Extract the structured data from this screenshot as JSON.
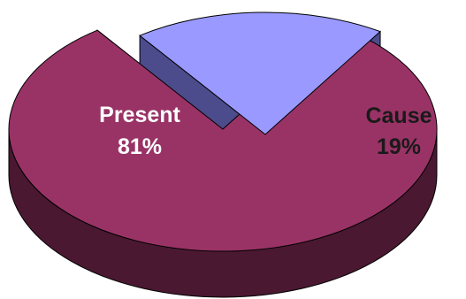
{
  "chart_data": {
    "type": "pie",
    "style": "3d-exploded",
    "slices": [
      {
        "label": "Present",
        "value": 81,
        "value_label": "81%",
        "color": "#993366",
        "side_color": "#4a1830"
      },
      {
        "label": "Cause",
        "value": 19,
        "value_label": "19%",
        "color": "#9999ff",
        "side_color": "#4c4c8c"
      }
    ]
  }
}
